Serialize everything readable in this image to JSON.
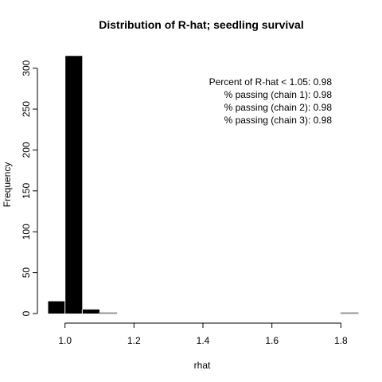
{
  "chart_data": {
    "type": "bar",
    "title": "Distribution of R-hat; seedling survival",
    "xlabel": "rhat",
    "ylabel": "Frequency",
    "xlim": [
      0.95,
      1.85
    ],
    "ylim": [
      0,
      325
    ],
    "x_ticks": [
      1.0,
      1.2,
      1.4,
      1.6,
      1.8
    ],
    "x_tick_labels": [
      "1.0",
      "1.2",
      "1.4",
      "1.6",
      "1.8"
    ],
    "y_ticks": [
      0,
      50,
      100,
      150,
      200,
      250,
      300
    ],
    "y_tick_labels": [
      "0",
      "50",
      "100",
      "150",
      "200",
      "250",
      "300"
    ],
    "bin_width": 0.05,
    "bins": [
      {
        "start": 0.95,
        "end": 1.0,
        "count": 15
      },
      {
        "start": 1.0,
        "end": 1.05,
        "count": 315
      },
      {
        "start": 1.05,
        "end": 1.1,
        "count": 5
      },
      {
        "start": 1.1,
        "end": 1.15,
        "count": 1
      },
      {
        "start": 1.8,
        "end": 1.85,
        "count": 1
      }
    ],
    "bar_color": "#000000",
    "bar_border": "#ffffff",
    "annotations": [
      "Percent of R-hat < 1.05: 0.98",
      "% passing (chain 1): 0.98",
      "% passing (chain 2): 0.98",
      "% passing (chain 3): 0.98"
    ]
  }
}
